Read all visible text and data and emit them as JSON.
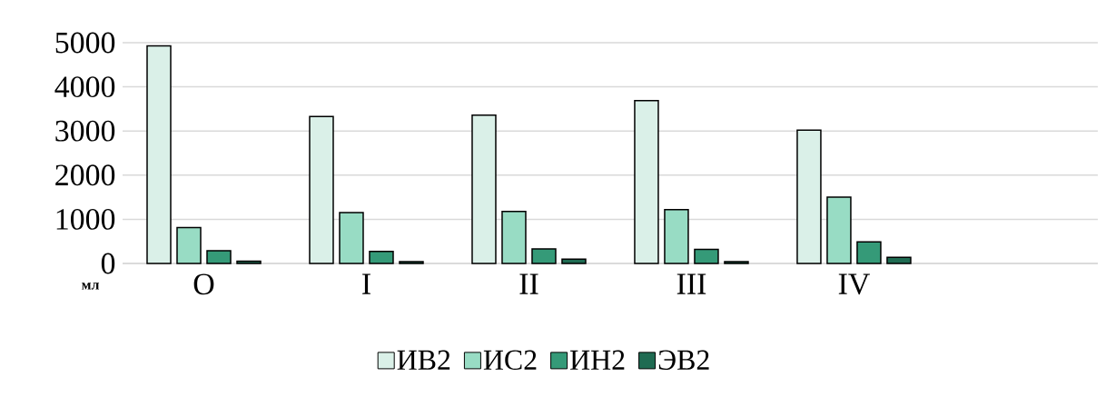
{
  "chart_data": {
    "type": "bar",
    "ylabel": "мл",
    "categories": [
      "O",
      "I",
      "II",
      "III",
      "IV",
      null
    ],
    "series": [
      {
        "name": "ИВ2",
        "color": "#daf0e8",
        "values": [
          4930,
          3330,
          3360,
          3690,
          3020,
          null
        ]
      },
      {
        "name": "ИС2",
        "color": "#98dcc4",
        "values": [
          810,
          1150,
          1180,
          1220,
          1500,
          null
        ]
      },
      {
        "name": "ИН2",
        "color": "#359a78",
        "values": [
          290,
          270,
          330,
          320,
          490,
          null
        ]
      },
      {
        "name": "ЭВ2",
        "color": "#1f6b52",
        "values": [
          50,
          40,
          100,
          40,
          140,
          null
        ]
      }
    ],
    "ylim": [
      0,
      5000
    ],
    "yticks": [
      0,
      1000,
      2000,
      3000,
      4000,
      5000
    ],
    "grid": "y",
    "legend": "bottom"
  }
}
